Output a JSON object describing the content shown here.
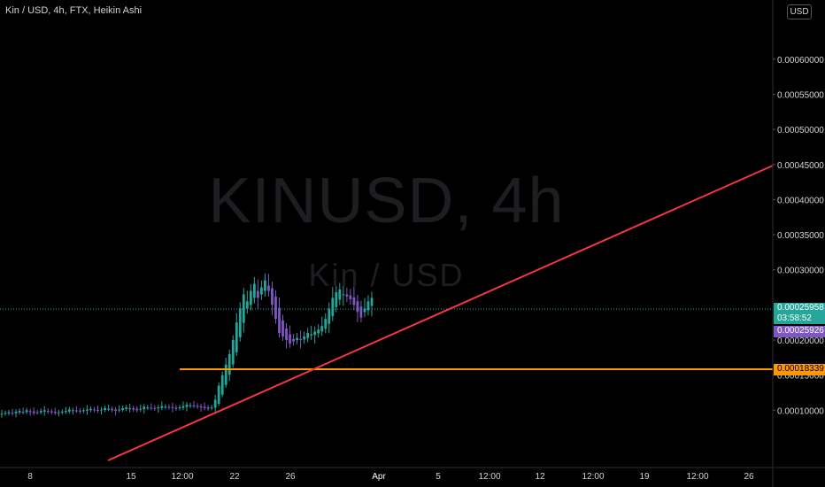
{
  "header": {
    "title": "Kin / USD, 4h, FTX, Heikin Ashi"
  },
  "watermark": {
    "symbol": "KINUSD, 4h",
    "pair": "Kin / USD"
  },
  "currency_button": "USD",
  "price_axis": {
    "labels": [
      "0.00060000",
      "0.00055000",
      "0.00050000",
      "0.00045000",
      "0.00040000",
      "0.00035000",
      "0.00030000",
      "0.00020000",
      "0.00015000",
      "0.00010000"
    ]
  },
  "time_axis": {
    "labels": [
      "8",
      "15",
      "12:00",
      "22",
      "26",
      "Apr",
      "5",
      "12:00",
      "12",
      "12:00",
      "19",
      "12:00",
      "26"
    ]
  },
  "tags": {
    "last_price": "0.00025958",
    "countdown": "03:58:52",
    "purple_price": "0.00025926",
    "orange_price": "0.00018339"
  },
  "colors": {
    "up": "#26a69a",
    "down": "#7e57c2",
    "trendline": "#f23645",
    "hline": "#ff9800",
    "bg": "#000000"
  },
  "drawings": {
    "trendline": {
      "from": [
        "Mar 13",
        6.65e-05
      ],
      "to": [
        "beyond Apr 26",
        0.000436
      ]
    },
    "horizontal_line": {
      "value": 0.00018339
    }
  },
  "chart_data": {
    "type": "candlestick",
    "symbol": "KINUSD",
    "interval": "4h",
    "style": "Heikin Ashi",
    "ylim": [
      5.8e-05,
      0.000635
    ],
    "series_close": [
      9.5e-05,
      9.6e-05,
      9.7e-05,
      9.5e-05,
      9.8e-05,
      9.9e-05,
      9.7e-05,
      0.0001,
      9.8e-05,
      9.6e-05,
      9.7e-05,
      9.9e-05,
      0.0001,
      9.8e-05,
      9.7e-05,
      9.6e-05,
      9.7e-05,
      9.8e-05,
      9.9e-05,
      0.000101,
      0.0001,
      9.9e-05,
      9.8e-05,
      0.0001,
      0.000101,
      0.000102,
      0.0001,
      9.9e-05,
      0.000101,
      0.000103,
      0.000102,
      0.0001,
      9.9e-05,
      0.000101,
      0.000103,
      0.000104,
      0.000103,
      0.000101,
      0.0001,
      0.000102,
      0.000105,
      0.000104,
      0.000103,
      0.000102,
      0.000104,
      0.000106,
      0.000105,
      0.000104,
      0.000103,
      0.000102,
      0.000104,
      0.000106,
      0.000108,
      0.000107,
      0.000106,
      0.000105,
      0.000104,
      0.000103,
      0.000102,
      0.000104,
      0.000115,
      0.000135,
      0.00015,
      0.000165,
      0.00018,
      0.0002,
      0.000225,
      0.000245,
      0.000265,
      0.000255,
      0.00027,
      0.00028,
      0.00026,
      0.000275,
      0.000285,
      0.00027,
      0.00025,
      0.00023,
      0.00021,
      0.000205,
      0.0002,
      0.000195,
      0.000198,
      0.000203,
      0.0002,
      0.000205,
      0.00021,
      0.000208,
      0.000212,
      0.000215,
      0.00022,
      0.00023,
      0.000245,
      0.00026,
      0.000268,
      0.000272,
      0.000265,
      0.000262,
      0.000258,
      0.00025,
      0.00024,
      0.000232,
      0.000245,
      0.000255,
      0.00026
    ]
  }
}
